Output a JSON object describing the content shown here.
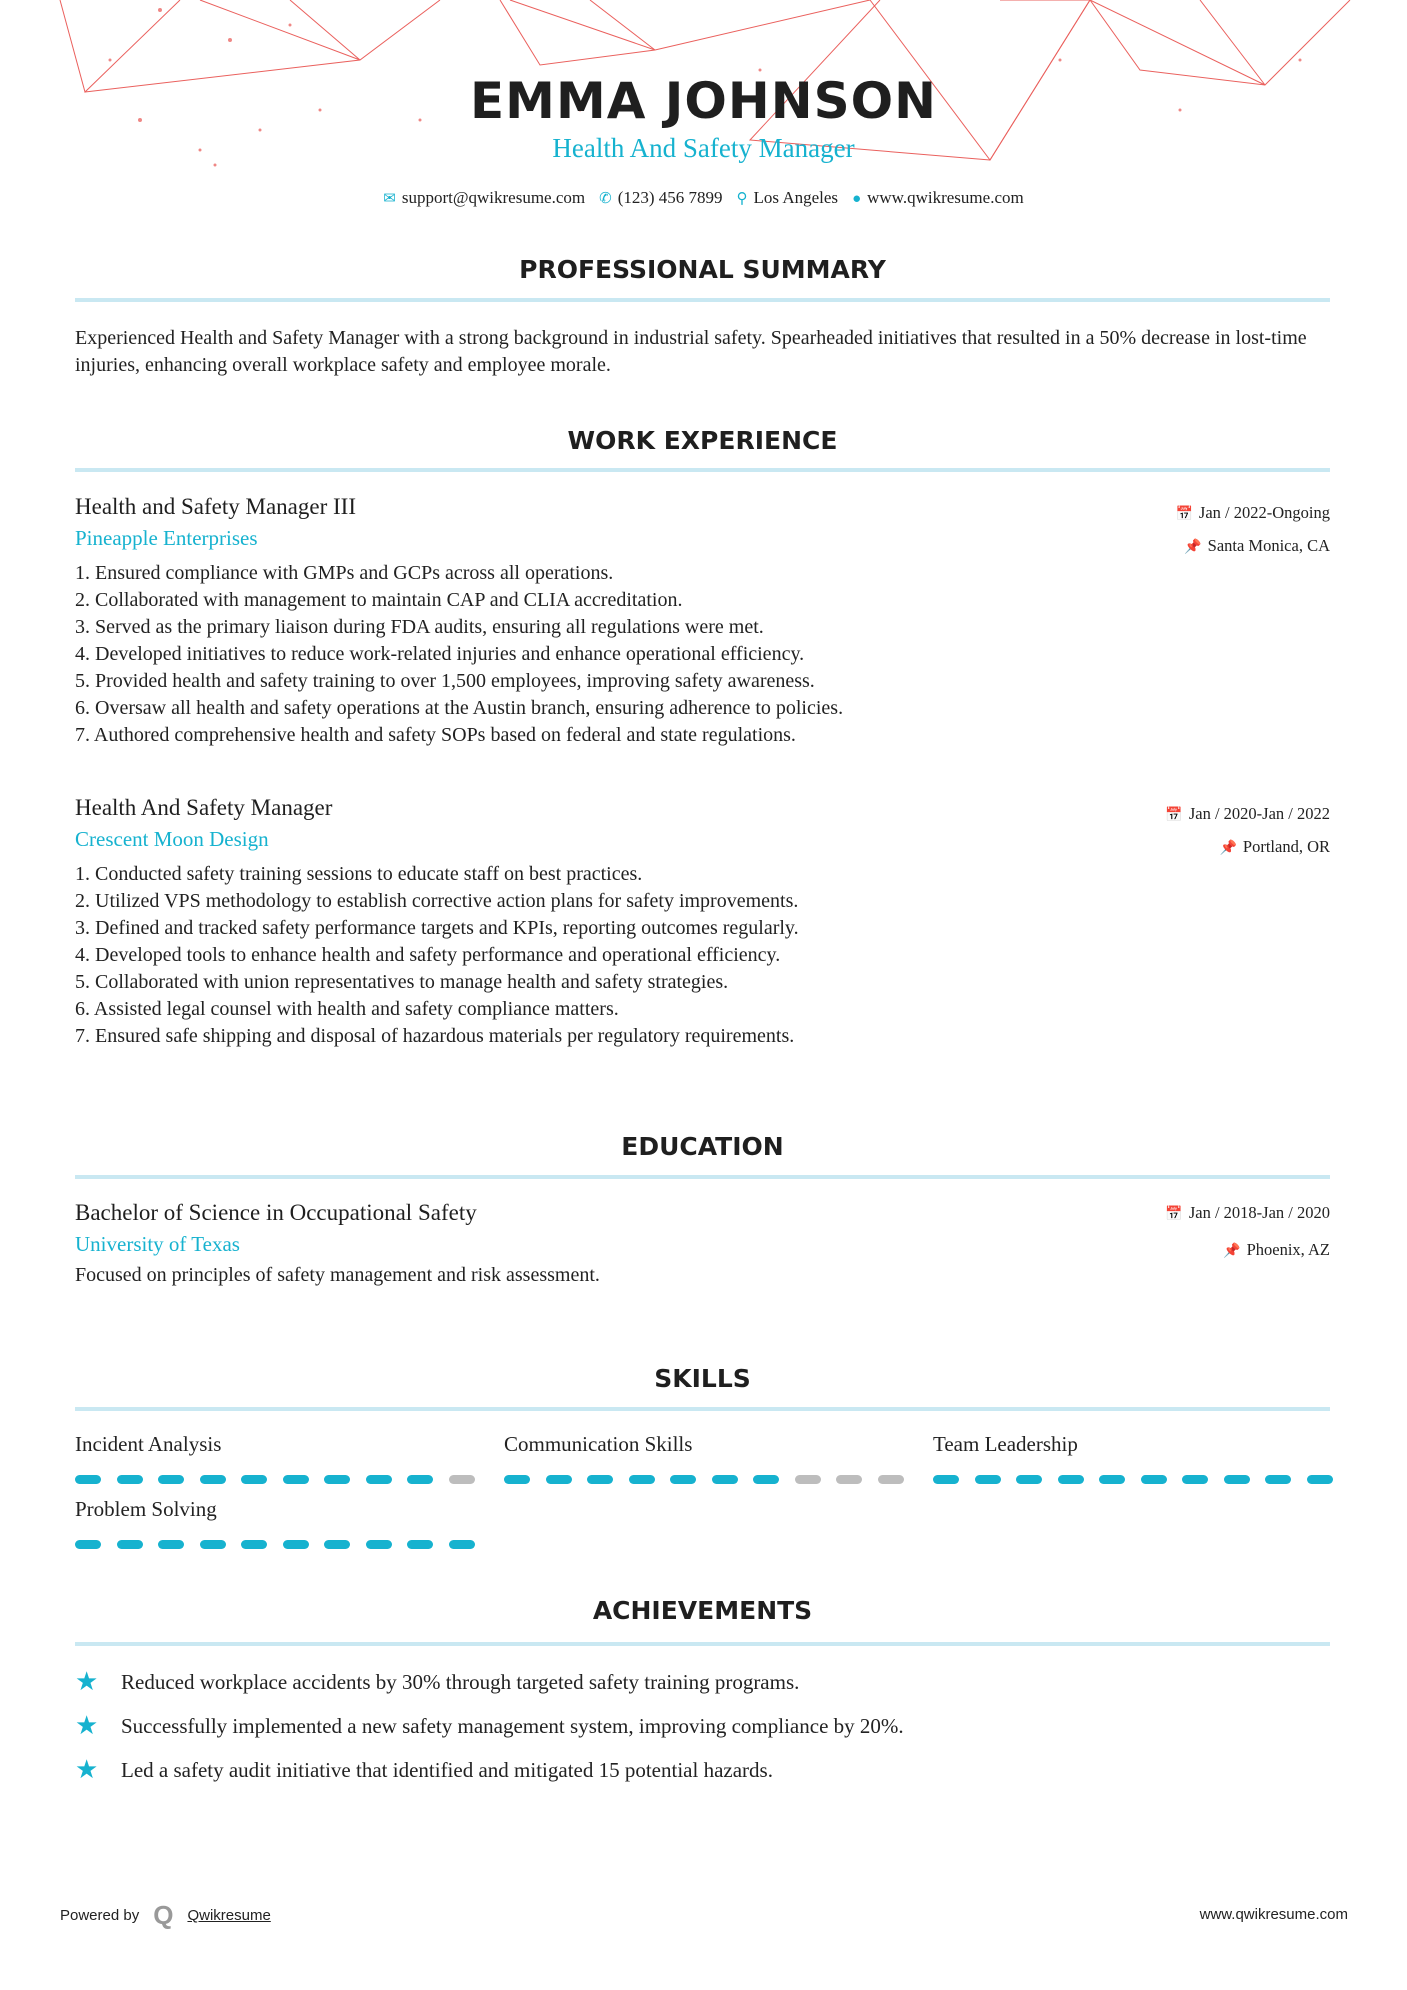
{
  "colors": {
    "accent": "#16b2cf",
    "decoration": "#e53935"
  },
  "header": {
    "name": "EMMA JOHNSON",
    "title": "Health And Safety Manager",
    "contacts": [
      {
        "icon": "email-icon",
        "text": "support@qwikresume.com"
      },
      {
        "icon": "phone-icon",
        "text": "(123) 456 7899"
      },
      {
        "icon": "location-icon",
        "text": "Los Angeles"
      },
      {
        "icon": "globe-icon",
        "text": "www.qwikresume.com"
      }
    ]
  },
  "summary": {
    "heading": "PROFESSIONAL SUMMARY",
    "text": "Experienced Health and Safety Manager with a strong background in industrial safety. Spearheaded initiatives that resulted in a 50% decrease in lost-time injuries, enhancing overall workplace safety and employee morale."
  },
  "work": {
    "heading": "WORK EXPERIENCE",
    "jobs": [
      {
        "title": "Health and Safety Manager III",
        "company": "Pineapple Enterprises",
        "date": "Jan / 2022-Ongoing",
        "location": "Santa Monica, CA",
        "bullets": [
          "1. Ensured compliance with GMPs and GCPs across all operations.",
          "2. Collaborated with management to maintain CAP and CLIA accreditation.",
          "3. Served as the primary liaison during FDA audits, ensuring all regulations were met.",
          "4. Developed initiatives to reduce work-related injuries and enhance operational efficiency.",
          "5. Provided health and safety training to over 1,500 employees, improving safety awareness.",
          "6. Oversaw all health and safety operations at the Austin branch, ensuring adherence to policies.",
          "7. Authored comprehensive health and safety SOPs based on federal and state regulations."
        ]
      },
      {
        "title": "Health And Safety Manager",
        "company": "Crescent Moon Design",
        "date": "Jan / 2020-Jan / 2022",
        "location": "Portland, OR",
        "bullets": [
          "1. Conducted safety training sessions to educate staff on best practices.",
          "2. Utilized VPS methodology to establish corrective action plans for safety improvements.",
          "3. Defined and tracked safety performance targets and KPIs, reporting outcomes regularly.",
          "4. Developed tools to enhance health and safety performance and operational efficiency.",
          "5. Collaborated with union representatives to manage health and safety strategies.",
          "6. Assisted legal counsel with health and safety compliance matters.",
          "7. Ensured safe shipping and disposal of hazardous materials per regulatory requirements."
        ]
      }
    ]
  },
  "education": {
    "heading": "EDUCATION",
    "degree": "Bachelor of Science in Occupational Safety",
    "school": "University of Texas",
    "date": "Jan / 2018-Jan / 2020",
    "location": "Phoenix, AZ",
    "description": "Focused on principles of safety management and risk assessment."
  },
  "skills": {
    "heading": "SKILLS",
    "items": [
      {
        "name": "Incident Analysis",
        "level": 9,
        "max": 10
      },
      {
        "name": "Communication Skills",
        "level": 7,
        "max": 10
      },
      {
        "name": "Team Leadership",
        "level": 10,
        "max": 10
      },
      {
        "name": "Problem Solving",
        "level": 10,
        "max": 10
      }
    ]
  },
  "achievements": {
    "heading": "ACHIEVEMENTS",
    "items": [
      "Reduced workplace accidents by 30% through targeted safety training programs.",
      "Successfully implemented a new safety management system, improving compliance by 20%.",
      "Led a safety audit initiative that identified and mitigated 15 potential hazards."
    ]
  },
  "footer": {
    "powered_by": "Powered by",
    "brand": "Qwikresume",
    "url": "www.qwikresume.com"
  }
}
